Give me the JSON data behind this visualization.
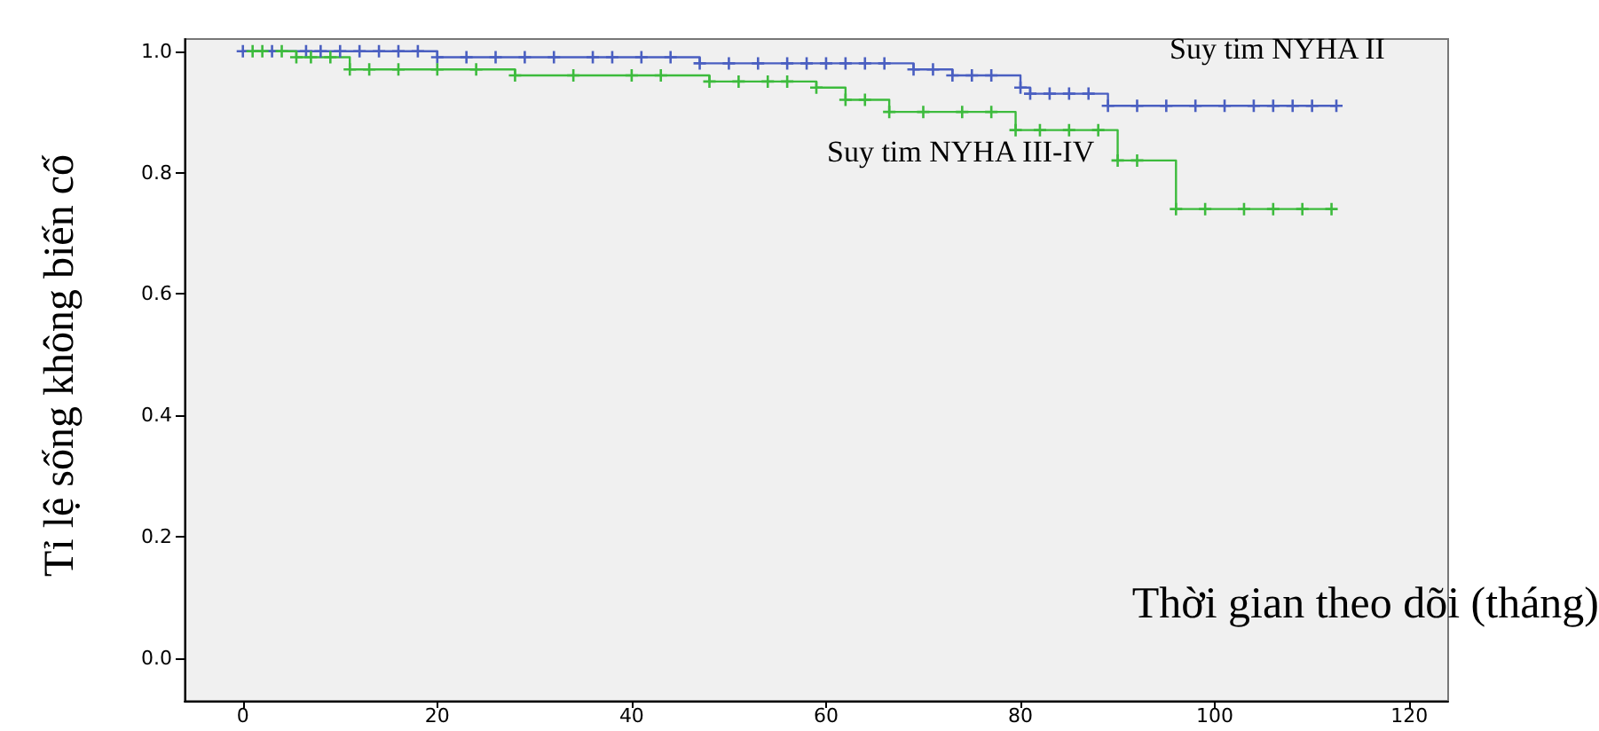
{
  "chart_data": {
    "type": "step",
    "xlabel": "Thời gian theo dõi (tháng)",
    "ylabel": "Tỉ lệ sống không biến cố",
    "xlim": [
      -6,
      124
    ],
    "xticks": [
      0,
      20,
      40,
      60,
      80,
      100,
      120
    ],
    "ylim": [
      -0.07,
      1.02
    ],
    "yticks": [
      {
        "value": 0,
        "label": "0.0"
      },
      {
        "value": 0.2,
        "label": "0.2"
      },
      {
        "value": 0.4,
        "label": "0.4"
      },
      {
        "value": 0.6,
        "label": "0.6"
      },
      {
        "value": 0.8,
        "label": "0.8"
      },
      {
        "value": 1,
        "label": "1.0"
      }
    ],
    "grid": false,
    "legend": false,
    "marker": "cross",
    "line_style": "solid",
    "series": [
      {
        "name": "Suy tim NYHA II",
        "color": "#4a5fc1",
        "x": [
          0,
          3,
          6.5,
          8,
          10,
          12,
          14,
          16,
          18,
          20,
          23,
          26,
          29,
          32,
          36,
          38,
          41,
          44,
          47,
          50,
          53,
          56,
          58,
          60,
          62,
          64,
          66,
          69,
          71,
          73,
          75,
          77,
          80,
          81,
          83,
          85,
          87,
          89,
          92,
          95,
          98,
          101,
          104,
          106,
          108,
          110,
          112.5
        ],
        "values": [
          1,
          1,
          1,
          1,
          1,
          1,
          1,
          1,
          1,
          0.99,
          0.99,
          0.99,
          0.99,
          0.99,
          0.99,
          0.99,
          0.99,
          0.99,
          0.98,
          0.98,
          0.98,
          0.98,
          0.98,
          0.98,
          0.98,
          0.98,
          0.98,
          0.97,
          0.97,
          0.96,
          0.96,
          0.96,
          0.94,
          0.93,
          0.93,
          0.93,
          0.93,
          0.91,
          0.91,
          0.91,
          0.91,
          0.91,
          0.91,
          0.91,
          0.91,
          0.91,
          0.91
        ]
      },
      {
        "name": "Suy tim NYHA III-IV",
        "color": "#3dbb3d",
        "x": [
          1,
          2,
          4,
          5.5,
          7,
          9,
          11,
          13,
          16,
          20,
          24,
          28,
          34,
          40,
          43,
          48,
          51,
          54,
          56,
          59,
          62,
          64,
          66.5,
          70,
          74,
          77,
          79.5,
          82,
          85,
          88,
          90,
          92,
          96,
          99,
          103,
          106,
          109,
          112
        ],
        "values": [
          1,
          1,
          1,
          0.99,
          0.99,
          0.99,
          0.97,
          0.97,
          0.97,
          0.97,
          0.97,
          0.96,
          0.96,
          0.96,
          0.96,
          0.95,
          0.95,
          0.95,
          0.95,
          0.94,
          0.92,
          0.92,
          0.9,
          0.9,
          0.9,
          0.9,
          0.87,
          0.87,
          0.87,
          0.87,
          0.82,
          0.82,
          0.74,
          0.74,
          0.74,
          0.74,
          0.74,
          0.74
        ]
      }
    ]
  }
}
